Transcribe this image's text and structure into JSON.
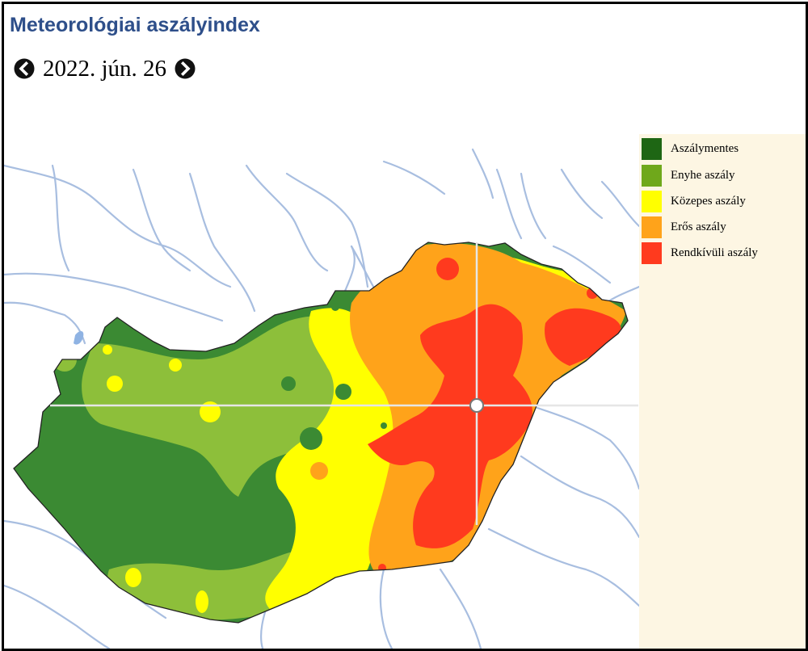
{
  "title": "Meteorológiai aszályindex",
  "date_label": "2022. jún. 26",
  "nav": {
    "prev_icon": "chevron-left-circle-icon",
    "next_icon": "chevron-right-circle-icon"
  },
  "legend": [
    {
      "label": "Aszálymentes",
      "color": "#1e6614"
    },
    {
      "label": "Enyhe aszály",
      "color": "#6fa81b"
    },
    {
      "label": "Közepes aszály",
      "color": "#ffff00"
    },
    {
      "label": "Erős aszály",
      "color": "#ffa31a"
    },
    {
      "label": "Rendkívüli aszály",
      "color": "#ff3a1e"
    }
  ],
  "colors": {
    "dark_green": "#3b8a33",
    "light_green": "#8dbf3a",
    "river": "#a8bee0",
    "title": "#2e4f8a",
    "legend_bg": "#fdf6e3"
  }
}
